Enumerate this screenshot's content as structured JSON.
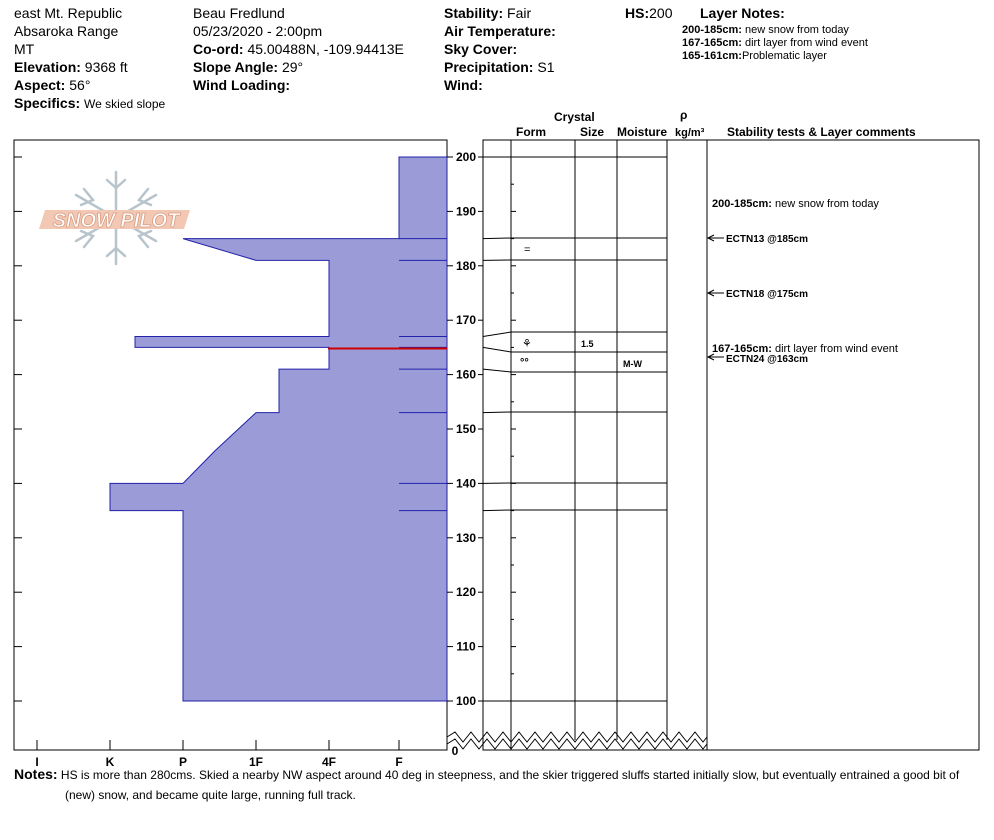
{
  "header": {
    "location": "east Mt. Republic",
    "range": "Absaroka Range",
    "state": "MT",
    "elevation_label": "Elevation:",
    "elevation": "9368 ft",
    "aspect_label": "Aspect:",
    "aspect": "56°",
    "specifics_label": "Specifics:",
    "specifics": "We skied slope",
    "observer": "Beau  Fredlund",
    "datetime": "05/23/2020 - 2:00pm",
    "coord_label": "Co-ord:",
    "coord": "45.00488N, -109.94413E",
    "slope_label": "Slope Angle:",
    "slope": "29°",
    "wind_loading_label": "Wind Loading:",
    "wind_loading": "",
    "stability_label": "Stability:",
    "stability": "Fair",
    "air_temp_label": "Air Temperature:",
    "air_temp": "",
    "sky_label": "Sky Cover:",
    "sky": "",
    "precip_label": "Precipitation:",
    "precip": "S1",
    "wind_label": "Wind:",
    "wind": "",
    "hs_label": "HS:",
    "hs": "200",
    "layer_notes_label": "Layer Notes:",
    "layer_notes": [
      {
        "range": "200-185cm:",
        "text": "new snow from today"
      },
      {
        "range": "167-165cm:",
        "text": "dirt layer from wind event"
      },
      {
        "range": "165-161cm:",
        "text": "Problematic layer"
      }
    ]
  },
  "logo_text": "SNOW PILOT",
  "columns": {
    "crystal": "Crystal",
    "form": "Form",
    "size": "Size",
    "moisture": "Moisture",
    "rho": "ρ",
    "density_unit": "kg/m³",
    "stability": "Stability tests & Layer comments"
  },
  "chart_data": {
    "type": "area",
    "x_axis": "hardness",
    "hardness_ticks": [
      "I",
      "K",
      "P",
      "1F",
      "4F",
      "F"
    ],
    "y_ticks": [
      200,
      190,
      180,
      170,
      160,
      150,
      140,
      130,
      120,
      110,
      100
    ],
    "y_zero_label": "0",
    "ylim": [
      100,
      200
    ],
    "layers": [
      {
        "top": 200,
        "bottom": 185,
        "hardness": "4F-F"
      },
      {
        "top": 185,
        "bottom": 181,
        "hardness": "P to 1F"
      },
      {
        "top": 181,
        "bottom": 167,
        "hardness": "1F-4F"
      },
      {
        "top": 167,
        "bottom": 165,
        "hardness": "K-P"
      },
      {
        "top": 165,
        "bottom": 161,
        "hardness": "4F"
      },
      {
        "top": 161,
        "bottom": 153,
        "hardness": "1F"
      },
      {
        "top": 153,
        "bottom": 140,
        "hardness": "P to 1F"
      },
      {
        "top": 140,
        "bottom": 135,
        "hardness": "I-K"
      },
      {
        "top": 135,
        "bottom": 100,
        "hardness": "P"
      }
    ],
    "layer_rows": [
      {
        "form": "=",
        "size": "",
        "moisture": ""
      },
      {
        "form": "⚘",
        "size": "1.5",
        "moisture": ""
      },
      {
        "form": "°°",
        "size": "",
        "moisture": "M-W"
      }
    ],
    "stability_comments": [
      {
        "range": "200-185cm:",
        "text": "new snow from today"
      },
      {
        "range": "167-165cm:",
        "text": "dirt layer from wind event"
      }
    ],
    "stability_tests": [
      "ECTN13 @185cm",
      "ECTN18 @175cm",
      "ECTN24 @163cm"
    ]
  },
  "notes_label": "Notes:",
  "notes_line1": "HS is more than 280cms.  Skied a nearby NW aspect around 40 deg in steepness, and the skier  triggered sluffs started initially slow, but eventually entrained a good bit of",
  "notes_line2": "(new) snow, and became quite large, running full track."
}
